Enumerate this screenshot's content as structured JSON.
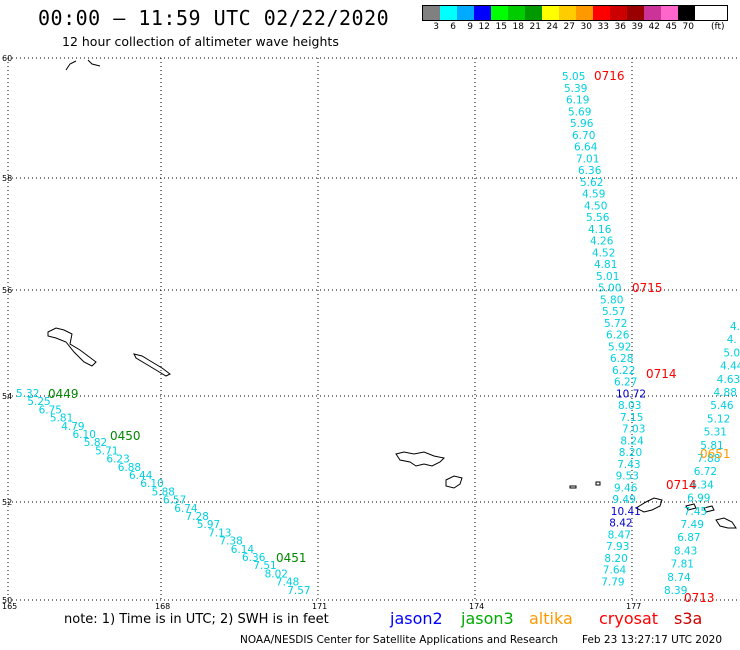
{
  "header": {
    "title": "00:00 – 11:59 UTC 02/22/2020",
    "subtitle": "12 hour collection of altimeter wave heights"
  },
  "scale": {
    "colors": [
      "#808080",
      "#00ffff",
      "#00aaff",
      "#0000ff",
      "#00ff00",
      "#00cc00",
      "#009900",
      "#ffff00",
      "#ffcc00",
      "#ff9900",
      "#ff0000",
      "#cc0000",
      "#990000",
      "#cc3399",
      "#ff66cc",
      "#000000"
    ],
    "labels": [
      "3",
      "6",
      "9",
      "12",
      "15",
      "18",
      "21",
      "24",
      "27",
      "30",
      "33",
      "36",
      "39",
      "42",
      "45",
      "70"
    ],
    "unit": "(ft)"
  },
  "map": {
    "lat_labels": [
      "60",
      "58",
      "56",
      "54",
      "52",
      "50"
    ],
    "lon_labels": [
      "165",
      "168",
      "171",
      "174",
      "177"
    ]
  },
  "tracks": {
    "track_a": {
      "time": "0716",
      "time_color": "#ff0000",
      "value_color": "#00d0e0",
      "values": [
        "5.05",
        "5.39",
        "6.19",
        "5.69",
        "5.96",
        "6.70",
        "6.64",
        "7.01",
        "6.36",
        "5.62",
        "4.59",
        "4.50",
        "5.56",
        "4.16",
        "4.26",
        "4.52",
        "4.81",
        "5.01",
        "5.00",
        "5.80",
        "5.57",
        "5.72",
        "6.26",
        "5.92",
        "6.28",
        "6.22",
        "6.27",
        "10.72",
        "8.03",
        "7.15",
        "7.03",
        "8.24",
        "8.20",
        "7.43",
        "9.53",
        "9.46",
        "9.49",
        "10.41",
        "8.42",
        "8.47",
        "7.93",
        "8.20",
        "7.64",
        "7.79"
      ]
    },
    "track_a_times": {
      "t1": "0715",
      "t2": "0714"
    },
    "track_b": {
      "time": "0714",
      "values": [
        "4.",
        "4.",
        "5.0",
        "4.44",
        "4.63",
        "4.88",
        "5.46",
        "5.12",
        "5.31",
        "5.81",
        "7.88",
        "6.72",
        "6.34",
        "6.99",
        "7.45",
        "7.49",
        "6.87",
        "8.43",
        "7.81",
        "8.74",
        "8.39"
      ]
    },
    "track_b_time2": "0713",
    "track_c": {
      "times": [
        "0449",
        "0450",
        "0451"
      ],
      "time_color": "#008800",
      "values": [
        "5.32",
        "5.25",
        "6.75",
        "5.81",
        "4.79",
        "6.10",
        "5.82",
        "5.71",
        "6.23",
        "6.88",
        "6.44",
        "6.10",
        "5.88",
        "6.57",
        "6.74",
        "7.28",
        "5.97",
        "7.13",
        "7.38",
        "6.14",
        "6.36",
        "7.51",
        "8.02",
        "7.48",
        "7.57"
      ]
    },
    "track_d_time": "0651"
  },
  "note": "note: 1) Time is in UTC; 2) SWH is in feet",
  "legend": [
    {
      "label": "jason2",
      "color": "#0000ff"
    },
    {
      "label": "jason3",
      "color": "#00aa00"
    },
    {
      "label": "altika",
      "color": "#ff9900"
    },
    {
      "label": "cryosat",
      "color": "#ff0000"
    },
    {
      "label": "s3a",
      "color": "#cc0000"
    }
  ],
  "footer": {
    "credit": "NOAA/NESDIS Center for Satellite Applications and Research",
    "timestamp": "Feb 23 13:27:17 UTC 2020"
  }
}
